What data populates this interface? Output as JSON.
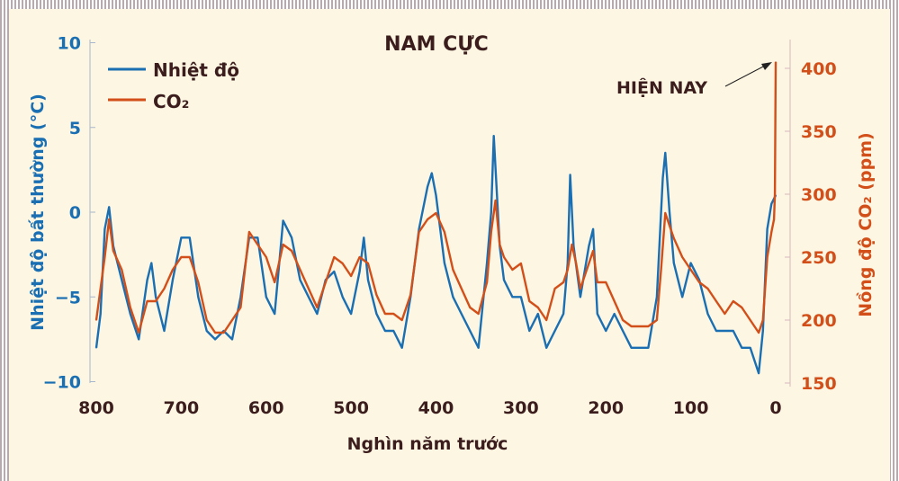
{
  "chart_data": {
    "type": "line",
    "title": "NAM CỰC",
    "xlabel": "Nghìn năm trước",
    "ylabel_left": "Nhiệt độ bất thường (°C)",
    "ylabel_right": "Nồng độ CO₂ (ppm)",
    "xlim": [
      800,
      0
    ],
    "ylim_left": [
      -10,
      10
    ],
    "ylim_right": [
      150,
      410
    ],
    "x_ticks": [
      "800",
      "700",
      "600",
      "500",
      "400",
      "300",
      "200",
      "100",
      "0"
    ],
    "y_left_ticks": [
      "10",
      "5",
      "0",
      "−5",
      "−10"
    ],
    "y_right_ticks": [
      "400",
      "350",
      "300",
      "250",
      "200",
      "150"
    ],
    "legend": [
      "Nhiệt độ",
      "CO₂"
    ],
    "legend_position": "top-left",
    "annotation": "HIỆN NAY",
    "colors": {
      "temperature": "#1a6fb3",
      "co2": "#d24f1a",
      "text": "#3b1d1d"
    },
    "series": [
      {
        "name": "Nhiệt độ",
        "axis": "left",
        "x": [
          800,
          795,
          790,
          785,
          780,
          770,
          760,
          750,
          740,
          735,
          730,
          720,
          710,
          700,
          690,
          680,
          670,
          660,
          650,
          640,
          630,
          620,
          610,
          600,
          590,
          580,
          570,
          560,
          550,
          540,
          530,
          520,
          510,
          500,
          490,
          485,
          480,
          470,
          460,
          450,
          440,
          430,
          420,
          410,
          405,
          400,
          390,
          380,
          370,
          360,
          350,
          340,
          335,
          332,
          325,
          320,
          310,
          300,
          290,
          280,
          270,
          260,
          250,
          245,
          242,
          238,
          230,
          220,
          215,
          210,
          200,
          190,
          180,
          170,
          160,
          150,
          140,
          133,
          130,
          125,
          120,
          110,
          100,
          90,
          80,
          70,
          60,
          50,
          40,
          30,
          20,
          15,
          10,
          5,
          0
        ],
        "values": [
          -8,
          -6,
          -1,
          0.3,
          -2,
          -4,
          -6,
          -7.5,
          -4,
          -3,
          -5,
          -7,
          -4,
          -1.5,
          -1.5,
          -5,
          -7,
          -7.5,
          -7,
          -7.5,
          -5,
          -1.5,
          -1.5,
          -5,
          -6,
          -0.5,
          -1.5,
          -4,
          -5,
          -6,
          -4,
          -3.5,
          -5,
          -6,
          -3.5,
          -1.5,
          -4,
          -6,
          -7,
          -7,
          -8,
          -5,
          -1,
          1.5,
          2.3,
          1,
          -3,
          -5,
          -6,
          -7,
          -8,
          -3,
          0,
          4.5,
          -2,
          -4,
          -5,
          -5,
          -7,
          -6,
          -8,
          -7,
          -6,
          -3,
          2.2,
          -2,
          -5,
          -2,
          -1,
          -6,
          -7,
          -6,
          -7,
          -8,
          -8,
          -8,
          -5,
          2,
          3.5,
          0,
          -3,
          -5,
          -3,
          -4,
          -6,
          -7,
          -7,
          -7,
          -8,
          -8,
          -9.5,
          -7,
          -1,
          0.5,
          1
        ]
      },
      {
        "name": "CO₂",
        "axis": "right",
        "x": [
          800,
          790,
          785,
          780,
          770,
          760,
          750,
          740,
          730,
          720,
          710,
          700,
          690,
          680,
          670,
          660,
          650,
          640,
          630,
          620,
          610,
          600,
          590,
          580,
          570,
          560,
          550,
          540,
          530,
          520,
          510,
          500,
          490,
          480,
          470,
          460,
          450,
          440,
          430,
          420,
          410,
          400,
          390,
          380,
          370,
          360,
          350,
          340,
          335,
          330,
          325,
          320,
          310,
          300,
          290,
          280,
          270,
          260,
          250,
          245,
          240,
          235,
          230,
          220,
          215,
          210,
          200,
          190,
          180,
          170,
          160,
          150,
          140,
          135,
          130,
          125,
          120,
          110,
          100,
          90,
          80,
          70,
          60,
          50,
          40,
          30,
          20,
          15,
          10,
          5,
          2,
          1,
          0
        ],
        "values": [
          200,
          250,
          280,
          255,
          240,
          210,
          190,
          215,
          215,
          225,
          240,
          250,
          250,
          230,
          200,
          190,
          190,
          200,
          210,
          270,
          260,
          250,
          230,
          260,
          255,
          240,
          225,
          210,
          230,
          250,
          245,
          235,
          250,
          245,
          220,
          205,
          205,
          200,
          220,
          270,
          280,
          285,
          270,
          240,
          225,
          210,
          205,
          230,
          270,
          295,
          260,
          250,
          240,
          245,
          215,
          210,
          200,
          225,
          230,
          240,
          260,
          245,
          225,
          245,
          255,
          230,
          230,
          215,
          200,
          195,
          195,
          195,
          200,
          240,
          285,
          275,
          265,
          250,
          240,
          230,
          225,
          215,
          205,
          215,
          210,
          200,
          190,
          200,
          250,
          270,
          280,
          300,
          405
        ]
      }
    ]
  }
}
